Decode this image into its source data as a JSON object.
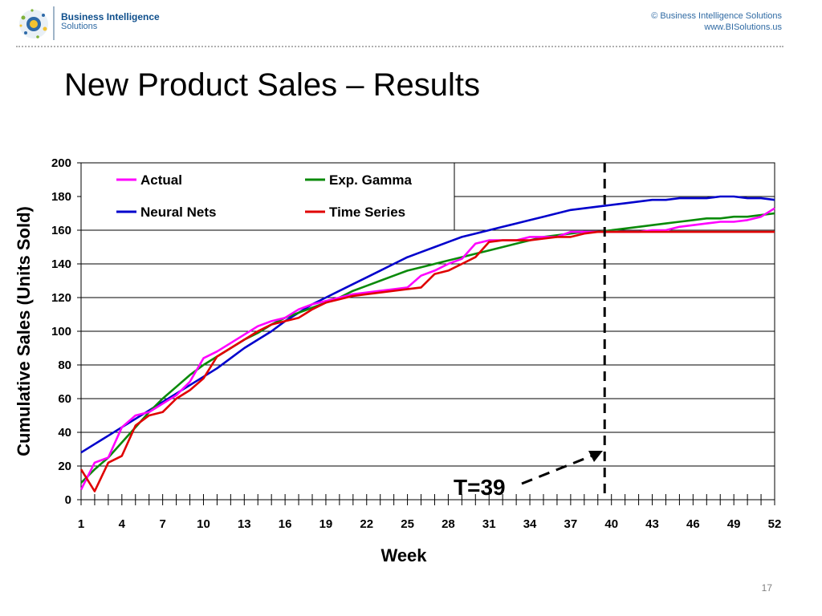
{
  "header": {
    "brand_line1": "Business Intelligence",
    "brand_line2": "Solutions",
    "copyright": "© Business Intelligence Solutions",
    "website": "www.BISolutions.us"
  },
  "slide": {
    "title": "New Product Sales – Results",
    "page_number": "17"
  },
  "chart_data": {
    "type": "line",
    "xlabel": "Week",
    "ylabel": "Cumulative Sales (Units Sold)",
    "xlim": [
      1,
      52
    ],
    "ylim": [
      0,
      200
    ],
    "x_ticks": [
      1,
      4,
      7,
      10,
      13,
      16,
      19,
      22,
      25,
      28,
      31,
      34,
      37,
      40,
      43,
      46,
      49,
      52
    ],
    "y_ticks": [
      0,
      20,
      40,
      60,
      80,
      100,
      120,
      140,
      160,
      180,
      200
    ],
    "grid": "horizontal",
    "legend_position": "top-left",
    "x": [
      1,
      2,
      3,
      4,
      5,
      6,
      7,
      8,
      9,
      10,
      11,
      12,
      13,
      14,
      15,
      16,
      17,
      18,
      19,
      20,
      21,
      22,
      23,
      24,
      25,
      26,
      27,
      28,
      29,
      30,
      31,
      32,
      33,
      34,
      35,
      36,
      37,
      38,
      39,
      40,
      41,
      42,
      43,
      44,
      45,
      46,
      47,
      48,
      49,
      50,
      51,
      52
    ],
    "series": [
      {
        "name": "Actual",
        "color": "#ff00ff",
        "values": [
          6,
          22,
          25,
          43,
          50,
          52,
          57,
          62,
          70,
          84,
          88,
          93,
          98,
          103,
          106,
          108,
          113,
          116,
          118,
          120,
          122,
          123,
          124,
          125,
          126,
          133,
          136,
          140,
          143,
          152,
          154,
          154,
          154,
          156,
          156,
          156,
          159,
          159,
          159,
          159,
          159,
          159,
          160,
          160,
          162,
          163,
          164,
          165,
          165,
          166,
          168,
          173
        ]
      },
      {
        "name": "Exp. Gamma",
        "color": "#0a8a0a",
        "values": [
          10,
          18,
          25,
          34,
          43,
          52,
          60,
          67,
          74,
          80,
          85,
          90,
          95,
          99,
          104,
          108,
          111,
          114,
          117,
          120,
          124,
          127,
          130,
          133,
          136,
          138,
          140,
          142,
          144,
          146,
          148,
          150,
          152,
          154,
          156,
          157,
          158,
          159,
          159,
          160,
          161,
          162,
          163,
          164,
          165,
          166,
          167,
          167,
          168,
          168,
          169,
          170
        ]
      },
      {
        "name": "Neural Nets",
        "color": "#0000cc",
        "values": [
          28,
          33,
          38,
          43,
          48,
          53,
          58,
          63,
          68,
          73,
          78,
          84,
          90,
          95,
          100,
          106,
          111,
          116,
          120,
          124,
          128,
          132,
          136,
          140,
          144,
          147,
          150,
          153,
          156,
          158,
          160,
          162,
          164,
          166,
          168,
          170,
          172,
          173,
          174,
          175,
          176,
          177,
          178,
          178,
          179,
          179,
          179,
          180,
          180,
          179,
          179,
          178
        ]
      },
      {
        "name": "Time Series",
        "color": "#e00000",
        "values": [
          18,
          5,
          22,
          26,
          44,
          50,
          52,
          60,
          65,
          72,
          85,
          90,
          95,
          100,
          104,
          106,
          108,
          113,
          117,
          119,
          121,
          122,
          123,
          124,
          125,
          126,
          134,
          136,
          140,
          144,
          153,
          154,
          154,
          154,
          155,
          156,
          156,
          158,
          159,
          159,
          159,
          159,
          159,
          159,
          159,
          159,
          159,
          159,
          159,
          159,
          159,
          159
        ]
      }
    ],
    "annotation": {
      "text": "T=39",
      "week": 39.5
    }
  }
}
